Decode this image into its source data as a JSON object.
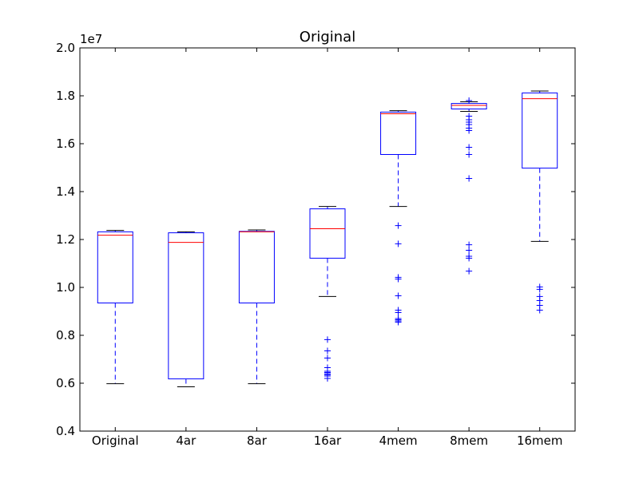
{
  "chart_data": {
    "type": "box",
    "title": "Original",
    "xlabel": "",
    "ylabel": "",
    "y_scale_label": "1e7",
    "ylim": [
      0.4,
      2.0
    ],
    "y_ticks": [
      0.4,
      0.6,
      0.8,
      1.0,
      1.2,
      1.4,
      1.6,
      1.8,
      2.0
    ],
    "y_tick_labels": [
      "0.4",
      "0.6",
      "0.8",
      "1.0",
      "1.2",
      "1.4",
      "1.6",
      "1.8",
      "2.0"
    ],
    "categories": [
      "Original",
      "4ar",
      "8ar",
      "16ar",
      "4mem",
      "8mem",
      "16mem"
    ],
    "grid": false,
    "colors": {
      "box": "#0000ff",
      "median": "#ff0000",
      "cap": "#000000",
      "flier": "#0000ff"
    },
    "boxes": [
      {
        "name": "Original",
        "whisker_low": 0.598,
        "q1": 0.935,
        "median": 1.218,
        "q3": 1.232,
        "whisker_high": 1.238,
        "fliers": []
      },
      {
        "name": "4ar",
        "whisker_low": 0.585,
        "q1": 0.618,
        "median": 1.188,
        "q3": 1.228,
        "whisker_high": 1.232,
        "fliers": []
      },
      {
        "name": "8ar",
        "whisker_low": 0.598,
        "q1": 0.935,
        "median": 1.232,
        "q3": 1.234,
        "whisker_high": 1.24,
        "fliers": []
      },
      {
        "name": "16ar",
        "whisker_low": 0.962,
        "q1": 1.122,
        "median": 1.245,
        "q3": 1.328,
        "whisker_high": 1.338,
        "fliers": [
          0.782,
          0.735,
          0.705,
          0.665,
          0.65,
          0.645,
          0.64,
          0.635,
          0.63,
          0.62
        ]
      },
      {
        "name": "4mem",
        "whisker_low": 1.338,
        "q1": 1.555,
        "median": 1.725,
        "q3": 1.732,
        "whisker_high": 1.738,
        "fliers": [
          1.258,
          1.182,
          1.042,
          1.035,
          0.965,
          0.905,
          0.895,
          0.87,
          0.865,
          0.86,
          0.855
        ]
      },
      {
        "name": "8mem",
        "whisker_low": 1.735,
        "q1": 1.745,
        "median": 1.76,
        "q3": 1.768,
        "whisker_high": 1.775,
        "fliers": [
          1.78,
          1.715,
          1.7,
          1.69,
          1.68,
          1.665,
          1.655,
          1.585,
          1.555,
          1.455,
          1.178,
          1.155,
          1.13,
          1.122,
          1.068
        ]
      },
      {
        "name": "16mem",
        "whisker_low": 1.192,
        "q1": 1.498,
        "median": 1.788,
        "q3": 1.812,
        "whisker_high": 1.82,
        "fliers": [
          1.002,
          0.992,
          0.962,
          0.945,
          0.925,
          0.905
        ]
      }
    ]
  }
}
